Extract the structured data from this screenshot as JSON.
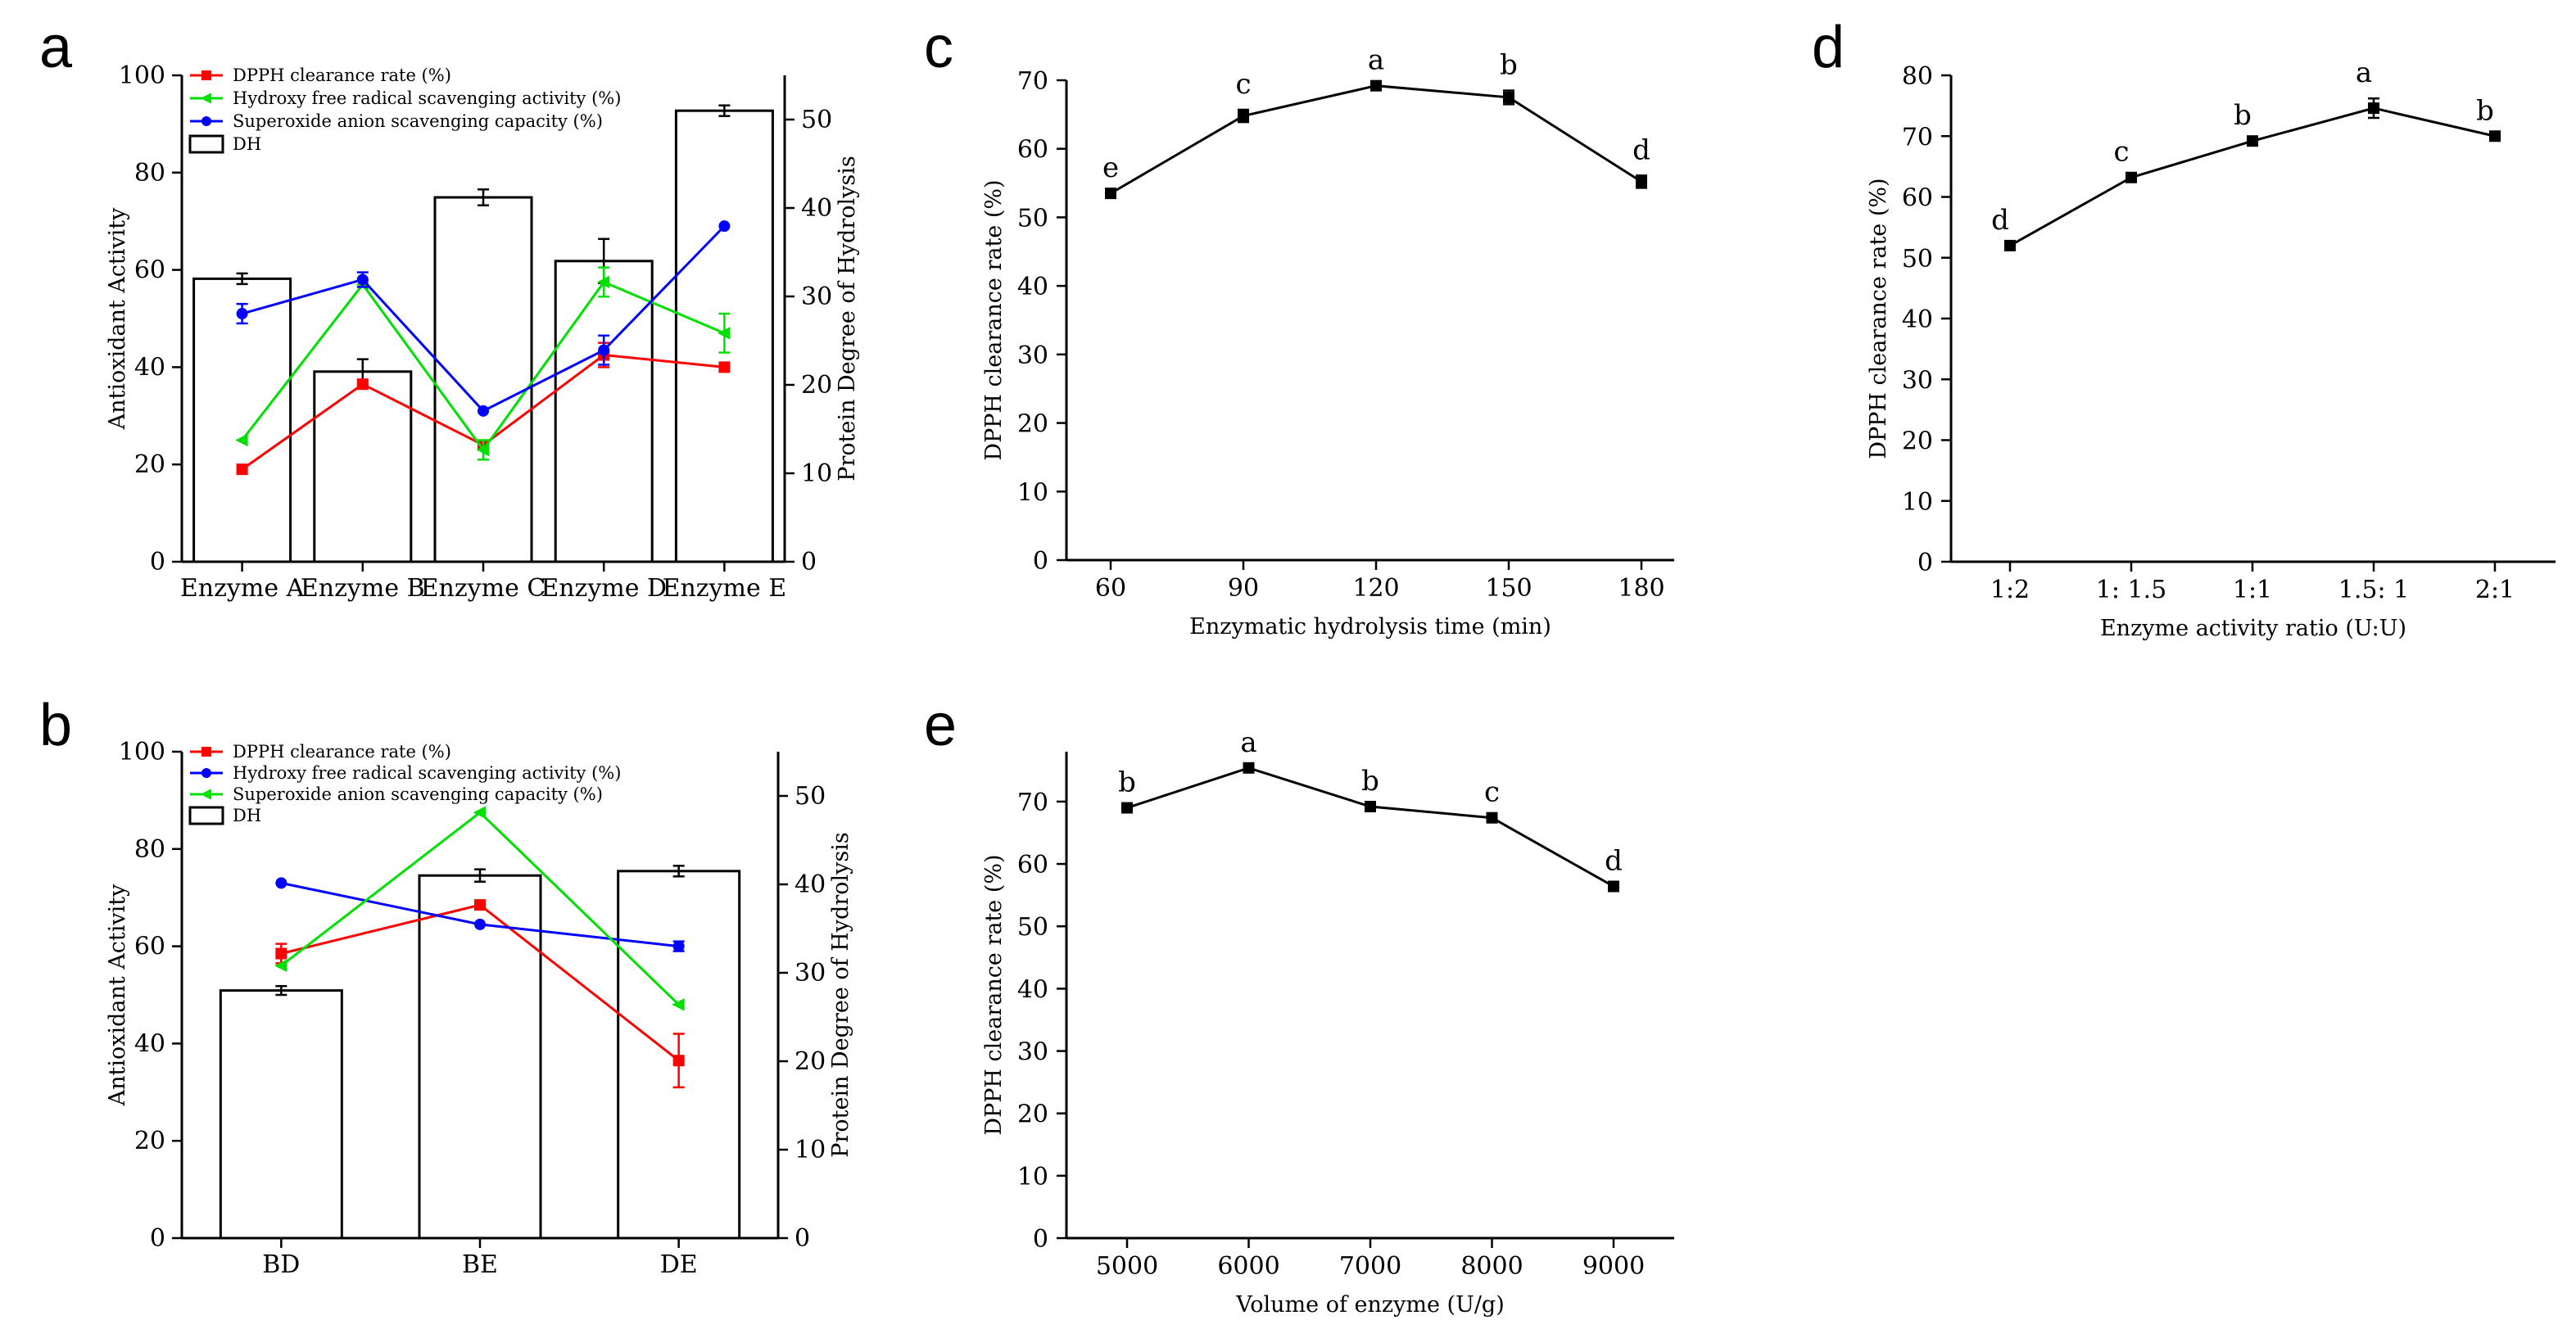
{
  "figure": {
    "panels": [
      "a",
      "b",
      "c",
      "d",
      "e"
    ]
  },
  "chart_data": [
    {
      "panel": "a",
      "type": "bar",
      "categories": [
        "Enzyme A",
        "Enzyme B",
        "Enzyme C",
        "Enzyme D",
        "Enzyme E"
      ],
      "ylabel": "Antioxidant Activity",
      "ylim": [
        0,
        100
      ],
      "yticks": [
        0,
        20,
        40,
        60,
        80,
        100
      ],
      "y2label": "Protein Degree of Hydrolysis",
      "y2lim": [
        0,
        55
      ],
      "y2ticks": [
        0,
        10,
        20,
        30,
        40,
        50
      ],
      "bars": {
        "name": "DH",
        "values": [
          32,
          21.5,
          41.2,
          34,
          51
        ],
        "errors": [
          0.6,
          1.4,
          0.9,
          2.5,
          0.6
        ]
      },
      "series": [
        {
          "name": "DPPH clearance rate (%)",
          "color": "#ff0000",
          "marker": "square",
          "values": [
            19,
            36.5,
            24,
            42.5,
            40
          ],
          "errors": [
            0,
            0,
            0,
            2.5,
            0
          ]
        },
        {
          "name": "Hydroxy free radical scavenging activity (%)",
          "color": "#00e000",
          "marker": "triangle-left",
          "values": [
            25,
            57,
            23,
            57.5,
            47
          ],
          "errors": [
            0,
            0,
            2,
            3,
            4
          ]
        },
        {
          "name": "Superoxide anion scavenging capacity (%)",
          "color": "#0000ff",
          "marker": "circle",
          "values": [
            51,
            58,
            31,
            43.5,
            69
          ],
          "errors": [
            2,
            1.5,
            0,
            3,
            0
          ]
        }
      ],
      "legend": [
        "DPPH clearance rate (%)",
        "Hydroxy free radical scavenging activity (%)",
        "Superoxide anion scavenging capacity (%)",
        "DH"
      ],
      "legend_position": "top-left"
    },
    {
      "panel": "b",
      "type": "bar",
      "categories": [
        "BD",
        "BE",
        "DE"
      ],
      "ylabel": "Antioxidant Activity",
      "ylim": [
        0,
        100
      ],
      "yticks": [
        0,
        20,
        40,
        60,
        80,
        100
      ],
      "y2label": "Protein Degree of Hydrolysis",
      "y2lim": [
        0,
        55
      ],
      "y2ticks": [
        0,
        10,
        20,
        30,
        40,
        50
      ],
      "bars": {
        "name": "DH",
        "values": [
          28,
          41,
          41.5
        ],
        "errors": [
          0.5,
          0.7,
          0.6
        ]
      },
      "series": [
        {
          "name": "DPPH clearance rate (%)",
          "color": "#ff0000",
          "marker": "square",
          "values": [
            58.5,
            68.5,
            36.5
          ],
          "errors": [
            2,
            0,
            5.5
          ]
        },
        {
          "name": "Hydroxy free radical scavenging activity (%)",
          "color": "#0000ff",
          "marker": "circle",
          "values": [
            73,
            64.5,
            60
          ],
          "errors": [
            0,
            0,
            1
          ]
        },
        {
          "name": "Superoxide anion scavenging capacity (%)",
          "color": "#00e000",
          "marker": "triangle-left",
          "values": [
            56,
            87.5,
            48
          ],
          "errors": [
            0,
            0,
            0
          ]
        }
      ],
      "legend": [
        "DPPH clearance rate (%)",
        "Hydroxy free radical scavenging activity (%)",
        "Superoxide anion scavenging capacity (%)",
        "DH"
      ],
      "legend_position": "top-left"
    },
    {
      "panel": "c",
      "type": "line",
      "x": [
        60,
        90,
        120,
        150,
        180
      ],
      "xticks": [
        "60",
        "90",
        "120",
        "150",
        "180"
      ],
      "values": [
        53.5,
        64.8,
        69.2,
        67.5,
        55.2
      ],
      "errors": [
        0,
        0.9,
        0,
        1,
        0.9
      ],
      "letters": [
        "e",
        "c",
        "a",
        "b",
        "d"
      ],
      "xlabel": "Enzymatic hydrolysis time (min)",
      "ylabel": "DPPH clearance rate (%)",
      "ylim": [
        0,
        70
      ],
      "yticks": [
        0,
        10,
        20,
        30,
        40,
        50,
        60,
        70
      ]
    },
    {
      "panel": "d",
      "type": "line",
      "categories": [
        "1:2",
        "1: 1.5",
        "1:1",
        "1.5: 1",
        "2:1"
      ],
      "values": [
        52,
        63.2,
        69.2,
        74.6,
        70
      ],
      "errors": [
        0,
        0,
        0,
        1.6,
        0
      ],
      "letters": [
        "d",
        "c",
        "b",
        "a",
        "b"
      ],
      "xlabel": "Enzyme activity ratio (U:U)",
      "ylabel": "DPPH clearance rate (%)",
      "ylim": [
        0,
        80
      ],
      "yticks": [
        0,
        10,
        20,
        30,
        40,
        50,
        60,
        70,
        80
      ]
    },
    {
      "panel": "e",
      "type": "line",
      "x": [
        5000,
        6000,
        7000,
        8000,
        9000
      ],
      "xticks": [
        "5000",
        "6000",
        "7000",
        "8000",
        "9000"
      ],
      "values": [
        69,
        75.4,
        69.2,
        67.4,
        56.4
      ],
      "errors": [
        0,
        0,
        0,
        0,
        0
      ],
      "letters": [
        "b",
        "a",
        "b",
        "c",
        "d"
      ],
      "xlabel": "Volume of enzyme (U/g)",
      "ylabel": "DPPH clearance rate (%)",
      "ylim": [
        0,
        78
      ],
      "yticks": [
        0,
        10,
        20,
        30,
        40,
        50,
        60,
        70
      ]
    }
  ]
}
